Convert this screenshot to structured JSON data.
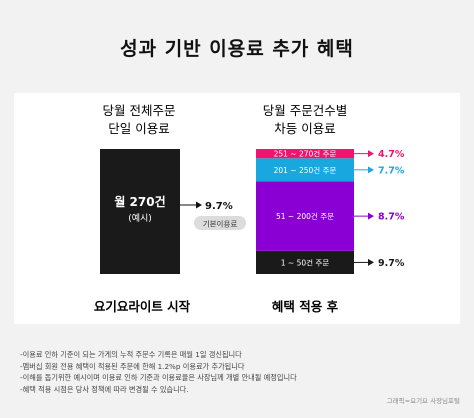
{
  "chart_data": {
    "type": "bar",
    "title": "성과 기반 이용료 추가 혜택",
    "left_bar": {
      "header": [
        "당월 전체주문",
        "단일 이용료"
      ],
      "label_main": "월 270건",
      "label_sub": "(예시)",
      "rate": "9.7%",
      "rate_tag": "기본이용료",
      "color": "#1a1a1a",
      "footer": "요기요라이트 시작"
    },
    "right_bar": {
      "header": [
        "당월 주문건수별",
        "차등 이용료"
      ],
      "footer": "혜택 적용 후",
      "segments": [
        {
          "label": "1 ~ 50건 주문",
          "rate": "9.7%",
          "orders": 50,
          "color": "#1a1a1a",
          "rate_color": "#1a1a1a"
        },
        {
          "label": "51 ~ 200건 주문",
          "rate": "8.7%",
          "orders": 150,
          "color": "#8a00d4",
          "rate_color": "#8a00d4"
        },
        {
          "label": "201 ~ 250건 주문",
          "rate": "7.7%",
          "orders": 50,
          "color": "#19a7e0",
          "rate_color": "#19a7e0"
        },
        {
          "label": "251 ~ 270건 주문",
          "rate": "4.7%",
          "orders": 20,
          "color": "#f0146e",
          "rate_color": "#f0146e"
        }
      ]
    }
  },
  "notes": [
    "-이용료 인하 기준이 되는 가게의 누적 주문수 기록은 매월 1일 갱신됩니다",
    "-멤버십 회원 전용 혜택이 적용된 주문에 한해 1.2%p 이용료가 추가됩니다",
    "-이해를 돕기위한 예시이며 이용료 인하 기준과 이용료율은 사장님께 개별 안내될 예정입니다",
    "-혜택 적용 시점은 당사 정책에 따라 변경될 수 있습니다."
  ],
  "credit": "그래픽=요기요 사장님포털"
}
